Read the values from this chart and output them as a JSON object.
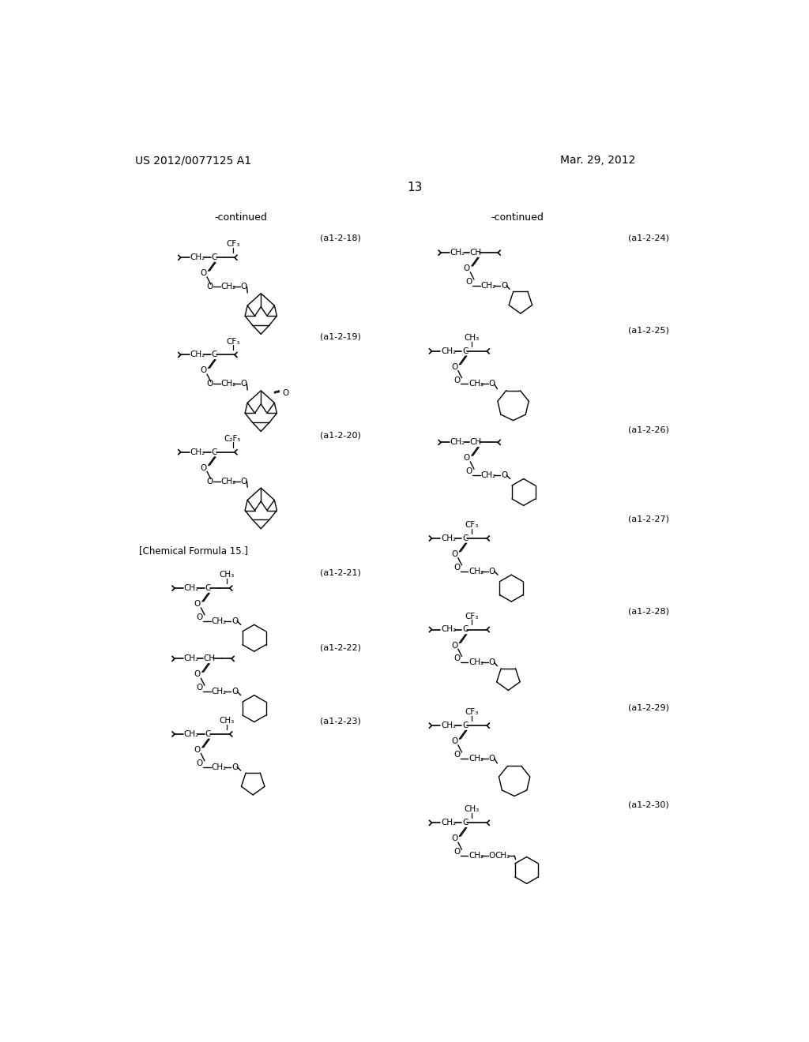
{
  "page_number": "13",
  "patent_number": "US 2012/0077125 A1",
  "patent_date": "Mar. 29, 2012",
  "background_color": "#ffffff",
  "text_color": "#000000",
  "continued_left": "-continued",
  "continued_right": "-continued",
  "chemical_formula_label": "[Chemical Formula 15.]",
  "labels": [
    "(a1-2-18)",
    "(a1-2-19)",
    "(a1-2-20)",
    "(a1-2-21)",
    "(a1-2-22)",
    "(a1-2-23)",
    "(a1-2-24)",
    "(a1-2-25)",
    "(a1-2-26)",
    "(a1-2-27)",
    "(a1-2-28)",
    "(a1-2-29)",
    "(a1-2-30)"
  ]
}
